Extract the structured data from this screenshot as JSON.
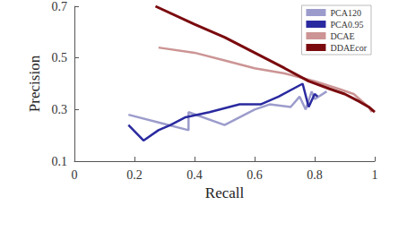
{
  "chart_data": {
    "type": "line",
    "x_label": "Recall",
    "y_label": "Precision",
    "xlim": [
      0,
      1
    ],
    "xticks": [
      0,
      0.2,
      0.4,
      0.6,
      0.8,
      1
    ],
    "ylim": [
      0.1,
      0.7
    ],
    "yticks": [
      0.1,
      0.3,
      0.5,
      0.7
    ],
    "grid": false,
    "legend": "top-right",
    "series": [
      {
        "name": "PCA120",
        "color": "#9c9ccc",
        "x": [
          0.18,
          0.28,
          0.38,
          0.38,
          0.5,
          0.6,
          0.65,
          0.72,
          0.75,
          0.77,
          0.79,
          0.8,
          0.84
        ],
        "values": [
          0.28,
          0.25,
          0.22,
          0.29,
          0.24,
          0.3,
          0.32,
          0.31,
          0.35,
          0.3,
          0.37,
          0.34,
          0.37
        ]
      },
      {
        "name": "PCA0.95",
        "color": "#2a2aa0",
        "x": [
          0.18,
          0.23,
          0.28,
          0.32,
          0.37,
          0.45,
          0.55,
          0.62,
          0.68,
          0.76,
          0.78,
          0.8,
          0.81
        ],
        "values": [
          0.24,
          0.18,
          0.22,
          0.24,
          0.27,
          0.29,
          0.32,
          0.32,
          0.35,
          0.4,
          0.31,
          0.36,
          0.35
        ]
      },
      {
        "name": "DCAE",
        "color": "#cc9494",
        "x": [
          0.28,
          0.4,
          0.5,
          0.6,
          0.7,
          0.8,
          0.88,
          0.93,
          0.96,
          0.98,
          0.99
        ],
        "values": [
          0.54,
          0.52,
          0.49,
          0.46,
          0.44,
          0.41,
          0.38,
          0.36,
          0.33,
          0.31,
          0.29
        ]
      },
      {
        "name": "DDAEcor",
        "color": "#7a0a0e",
        "x": [
          0.27,
          0.4,
          0.5,
          0.6,
          0.7,
          0.78,
          0.85,
          0.9,
          0.95,
          0.98,
          1.0
        ],
        "values": [
          0.7,
          0.63,
          0.58,
          0.52,
          0.46,
          0.41,
          0.38,
          0.36,
          0.33,
          0.31,
          0.29
        ]
      }
    ]
  }
}
